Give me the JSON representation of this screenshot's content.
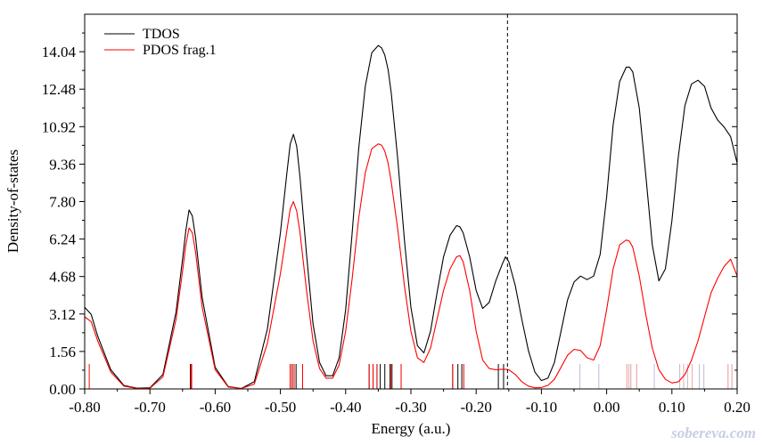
{
  "chart_data": {
    "type": "line",
    "xlabel": "Energy (a.u.)",
    "ylabel": "Density-of-states",
    "xlim": [
      -0.8,
      0.2
    ],
    "ylim": [
      0.0,
      15.6
    ],
    "x_ticks": [
      "-0.80",
      "-0.70",
      "-0.60",
      "-0.50",
      "-0.40",
      "-0.30",
      "-0.20",
      "-0.10",
      "0.00",
      "0.10",
      "0.20"
    ],
    "x_tick_values": [
      -0.8,
      -0.7,
      -0.6,
      -0.5,
      -0.4,
      -0.3,
      -0.2,
      -0.1,
      0.0,
      0.1,
      0.2
    ],
    "y_ticks": [
      "0.00",
      "1.56",
      "3.12",
      "4.68",
      "6.24",
      "7.80",
      "9.36",
      "10.92",
      "12.48",
      "14.04"
    ],
    "y_tick_values": [
      0.0,
      1.56,
      3.12,
      4.68,
      6.24,
      7.8,
      9.36,
      10.92,
      12.48,
      14.04
    ],
    "legend_position": "top-left",
    "grid": false,
    "homo_level": -0.152,
    "series": [
      {
        "name": "TDOS",
        "color": "#000000",
        "x": [
          -0.8,
          -0.79,
          -0.78,
          -0.76,
          -0.74,
          -0.72,
          -0.7,
          -0.68,
          -0.66,
          -0.65,
          -0.645,
          -0.64,
          -0.635,
          -0.63,
          -0.62,
          -0.6,
          -0.58,
          -0.56,
          -0.54,
          -0.52,
          -0.5,
          -0.49,
          -0.485,
          -0.48,
          -0.475,
          -0.47,
          -0.46,
          -0.45,
          -0.44,
          -0.43,
          -0.42,
          -0.41,
          -0.4,
          -0.39,
          -0.38,
          -0.37,
          -0.36,
          -0.35,
          -0.345,
          -0.34,
          -0.335,
          -0.33,
          -0.32,
          -0.31,
          -0.3,
          -0.29,
          -0.28,
          -0.27,
          -0.26,
          -0.25,
          -0.24,
          -0.23,
          -0.225,
          -0.22,
          -0.21,
          -0.2,
          -0.19,
          -0.18,
          -0.17,
          -0.16,
          -0.155,
          -0.15,
          -0.14,
          -0.13,
          -0.12,
          -0.11,
          -0.1,
          -0.09,
          -0.08,
          -0.07,
          -0.06,
          -0.05,
          -0.04,
          -0.03,
          -0.02,
          -0.01,
          0.0,
          0.01,
          0.02,
          0.03,
          0.035,
          0.04,
          0.05,
          0.06,
          0.07,
          0.08,
          0.09,
          0.1,
          0.11,
          0.12,
          0.13,
          0.14,
          0.15,
          0.16,
          0.17,
          0.18,
          0.19,
          0.2
        ],
        "y": [
          3.4,
          3.1,
          2.2,
          0.8,
          0.15,
          0.03,
          0.05,
          0.6,
          3.2,
          5.4,
          6.6,
          7.45,
          7.2,
          6.3,
          3.8,
          0.9,
          0.1,
          0.02,
          0.3,
          2.5,
          6.5,
          9.0,
          10.2,
          10.6,
          10.1,
          8.8,
          5.6,
          2.7,
          1.1,
          0.55,
          0.55,
          1.3,
          3.3,
          6.5,
          10.0,
          12.6,
          14.0,
          14.3,
          14.2,
          13.9,
          13.3,
          12.3,
          9.5,
          6.2,
          3.4,
          1.8,
          1.5,
          2.4,
          4.0,
          5.5,
          6.4,
          6.8,
          6.75,
          6.5,
          5.5,
          4.1,
          3.35,
          3.6,
          4.5,
          5.2,
          5.5,
          5.3,
          4.3,
          2.9,
          1.6,
          0.7,
          0.35,
          0.45,
          1.1,
          2.4,
          3.7,
          4.45,
          4.7,
          4.55,
          4.7,
          5.6,
          8.0,
          11.0,
          12.8,
          13.4,
          13.4,
          13.2,
          11.7,
          8.9,
          6.0,
          4.5,
          5.0,
          7.0,
          9.7,
          11.8,
          12.7,
          12.85,
          12.6,
          11.7,
          11.2,
          10.9,
          10.5,
          9.4
        ]
      },
      {
        "name": "PDOS frag.1",
        "color": "#ff0000",
        "x": [
          -0.8,
          -0.79,
          -0.78,
          -0.76,
          -0.74,
          -0.72,
          -0.7,
          -0.68,
          -0.66,
          -0.65,
          -0.645,
          -0.64,
          -0.635,
          -0.63,
          -0.62,
          -0.6,
          -0.58,
          -0.56,
          -0.54,
          -0.52,
          -0.5,
          -0.49,
          -0.485,
          -0.48,
          -0.475,
          -0.47,
          -0.46,
          -0.45,
          -0.44,
          -0.43,
          -0.42,
          -0.41,
          -0.4,
          -0.39,
          -0.38,
          -0.37,
          -0.36,
          -0.35,
          -0.345,
          -0.34,
          -0.335,
          -0.33,
          -0.32,
          -0.31,
          -0.3,
          -0.29,
          -0.28,
          -0.27,
          -0.26,
          -0.25,
          -0.24,
          -0.23,
          -0.225,
          -0.22,
          -0.21,
          -0.2,
          -0.19,
          -0.18,
          -0.17,
          -0.16,
          -0.155,
          -0.15,
          -0.14,
          -0.13,
          -0.12,
          -0.11,
          -0.1,
          -0.09,
          -0.08,
          -0.07,
          -0.06,
          -0.05,
          -0.04,
          -0.03,
          -0.02,
          -0.01,
          0.0,
          0.01,
          0.02,
          0.03,
          0.035,
          0.04,
          0.05,
          0.06,
          0.07,
          0.08,
          0.09,
          0.1,
          0.11,
          0.12,
          0.13,
          0.14,
          0.15,
          0.16,
          0.17,
          0.18,
          0.19,
          0.2
        ],
        "y": [
          3.0,
          2.8,
          2.0,
          0.7,
          0.12,
          0.02,
          0.03,
          0.5,
          2.9,
          4.9,
          6.0,
          6.7,
          6.5,
          5.7,
          3.4,
          0.8,
          0.08,
          0.02,
          0.2,
          1.9,
          4.8,
          6.6,
          7.5,
          7.8,
          7.4,
          6.5,
          4.1,
          2.0,
          0.85,
          0.45,
          0.45,
          1.0,
          2.4,
          4.6,
          7.1,
          9.0,
          10.0,
          10.2,
          10.15,
          9.9,
          9.4,
          8.6,
          6.6,
          4.3,
          2.4,
          1.3,
          1.1,
          1.7,
          2.9,
          4.1,
          5.0,
          5.5,
          5.55,
          5.3,
          4.1,
          2.4,
          1.2,
          0.85,
          0.8,
          0.82,
          0.82,
          0.8,
          0.6,
          0.3,
          0.12,
          0.05,
          0.06,
          0.15,
          0.4,
          0.9,
          1.4,
          1.65,
          1.6,
          1.3,
          1.2,
          1.8,
          3.3,
          5.0,
          6.0,
          6.2,
          6.15,
          5.9,
          4.7,
          3.1,
          1.7,
          0.8,
          0.4,
          0.25,
          0.3,
          0.6,
          1.2,
          2.0,
          3.0,
          4.0,
          4.6,
          5.1,
          5.4,
          4.7
        ]
      }
    ],
    "level_lines": {
      "tdos_occupied": [
        -0.638,
        -0.485,
        -0.482,
        -0.479,
        -0.476,
        -0.466,
        -0.364,
        -0.358,
        -0.352,
        -0.347,
        -0.34,
        -0.332,
        -0.329,
        -0.315,
        -0.236,
        -0.228,
        -0.222,
        -0.166,
        -0.158
      ],
      "tdos_virtual": [
        -0.041,
        -0.012,
        0.031,
        0.034,
        0.037,
        0.046,
        0.073,
        0.112,
        0.118,
        0.124,
        0.131,
        0.142,
        0.149,
        0.186,
        0.192
      ],
      "pdos_occupied": [
        -0.793,
        -0.637,
        -0.636,
        -0.485,
        -0.482,
        -0.479,
        -0.466,
        -0.364,
        -0.358,
        -0.352,
        -0.331,
        -0.315,
        -0.236,
        -0.219
      ],
      "pdos_virtual": [
        0.031,
        0.034,
        0.037,
        0.046,
        0.118,
        0.131,
        0.186,
        0.192
      ]
    }
  },
  "watermark": "sobereva.com"
}
